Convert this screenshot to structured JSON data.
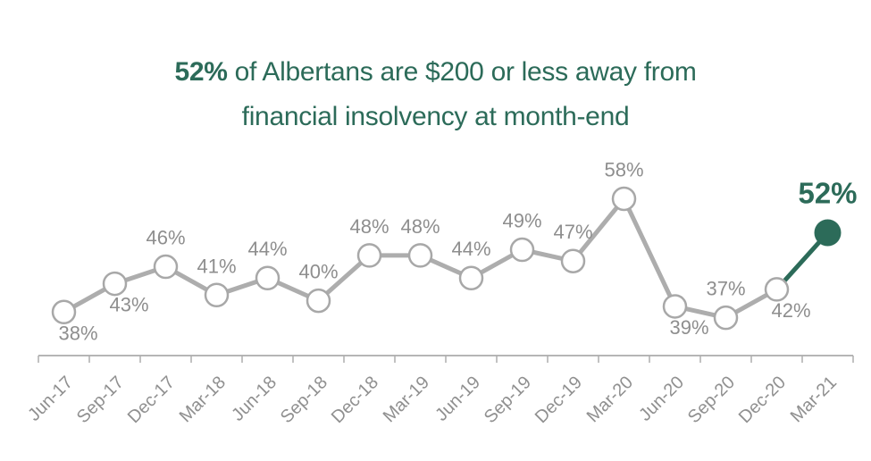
{
  "title": {
    "highlight": "52%",
    "line1_rest": " of Albertans are $200 or less away from",
    "line2": "financial insolvency at month-end"
  },
  "chart_data": {
    "type": "line",
    "title": "52% of Albertans are $200 or less away from financial insolvency at month-end",
    "categories": [
      "Jun-17",
      "Sep-17",
      "Dec-17",
      "Mar-18",
      "Jun-18",
      "Sep-18",
      "Dec-18",
      "Mar-19",
      "Jun-19",
      "Sep-19",
      "Dec-19",
      "Mar-20",
      "Jun-20",
      "Sep-20",
      "Dec-20",
      "Mar-21"
    ],
    "values": [
      38,
      43,
      46,
      41,
      44,
      40,
      48,
      48,
      44,
      49,
      47,
      58,
      39,
      37,
      42,
      52
    ],
    "labels": [
      "38%",
      "43%",
      "46%",
      "41%",
      "44%",
      "40%",
      "48%",
      "48%",
      "44%",
      "49%",
      "47%",
      "58%",
      "39%",
      "37%",
      "42%",
      "52%"
    ],
    "label_positions": [
      "below",
      "below",
      "above",
      "above",
      "above",
      "above",
      "above",
      "above",
      "above",
      "above",
      "above",
      "above",
      "below",
      "above",
      "below",
      "above"
    ],
    "highlight_index": 15,
    "highlight_label": "52%",
    "xlabel": "",
    "ylabel": "",
    "ylim": [
      30,
      62
    ],
    "grid": false,
    "legend": false,
    "data_labels": true,
    "colors": {
      "accent": "#2C6B59",
      "line": "#ADADAD",
      "marker_stroke": "#A8A8A8",
      "marker_fill": "#FFFFFF",
      "data_label": "#8E8E8E",
      "axis_line": "#B5B5B5",
      "axis_tick": "#ADADAD",
      "axis_label": "#909090"
    }
  }
}
